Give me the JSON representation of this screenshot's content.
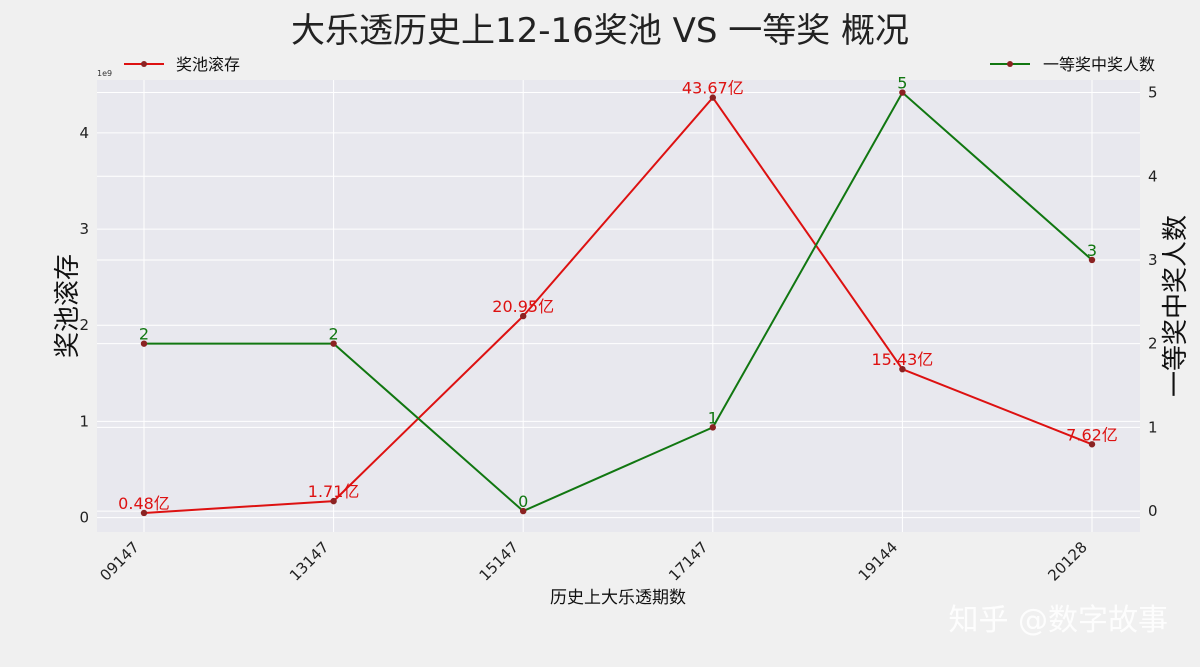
{
  "chart_data": {
    "type": "line",
    "title": "大乐透历史上12-16奖池 VS 一等奖 概况",
    "xlabel": "历史上大乐透期数",
    "ylabel_left": "奖池滚存",
    "ylabel_right": "一等奖中奖人数",
    "left_axis_exponent": "1e9",
    "categories": [
      "09147",
      "13147",
      "15147",
      "17147",
      "19144",
      "20128"
    ],
    "left_ylim": [
      -0.15,
      4.55
    ],
    "left_yticks": [
      0,
      1,
      2,
      3,
      4
    ],
    "right_ylim": [
      -0.25,
      5.15
    ],
    "right_yticks": [
      0,
      1,
      2,
      3,
      4,
      5
    ],
    "grid": true,
    "series": [
      {
        "name": "奖池滚存",
        "axis": "left",
        "color": "#dd1111",
        "values": [
          0.048,
          0.171,
          2.095,
          4.367,
          1.543,
          0.762
        ],
        "labels": [
          "0.48亿",
          "1.71亿",
          "20.95亿",
          "43.67亿",
          "15.43亿",
          "7.62亿"
        ],
        "legend_position": "top-left"
      },
      {
        "name": "一等奖中奖人数",
        "axis": "right",
        "color": "#117711",
        "values": [
          2,
          2,
          0,
          1,
          5,
          3
        ],
        "labels": [
          "2",
          "2",
          "0",
          "1",
          "5",
          "3"
        ],
        "legend_position": "top-right"
      }
    ]
  },
  "watermark": "知乎 @数字故事"
}
